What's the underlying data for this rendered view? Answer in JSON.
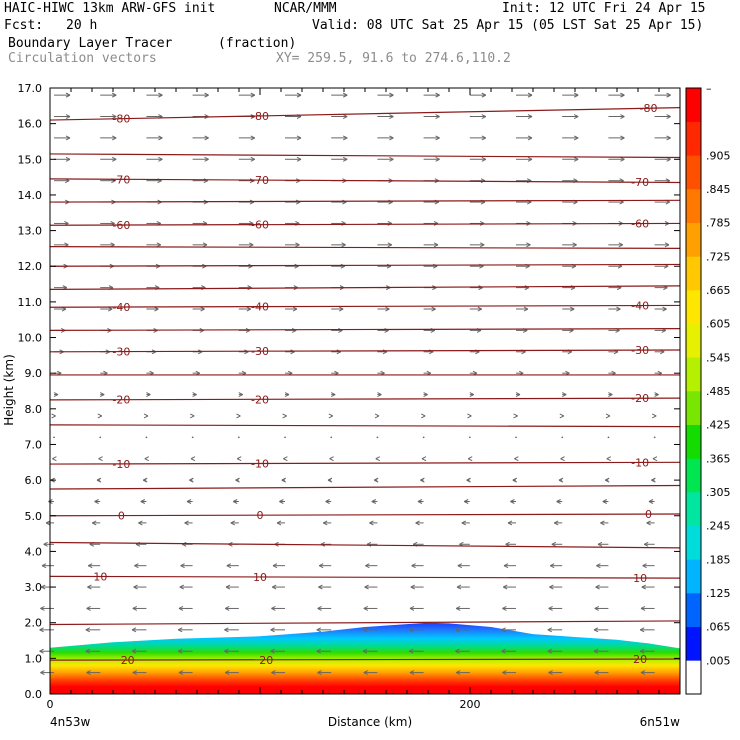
{
  "header": {
    "model": "HAIC-HIWC 13km ARW-GFS init",
    "org": "NCAR/MMM",
    "init": "Init: 12 UTC Fri 24 Apr 15",
    "fcst_label": "Fcst:",
    "fcst_value": "20 h",
    "valid": "Valid: 08 UTC Sat 25 Apr 15 (05 LST Sat 25 Apr 15)",
    "field_name": "Boundary Layer Tracer",
    "field_unit": "(fraction)",
    "vector_name": "Circulation vectors",
    "xy_range": "XY= 259.5, 91.6 to 274.6,110.2"
  },
  "chart_data": {
    "type": "heatmap",
    "title": "Boundary Layer Tracer (fraction)",
    "ylabel": "Height (km)",
    "xlabel": "Distance (km)",
    "xlim": [
      0,
      300
    ],
    "ylim": [
      0,
      17
    ],
    "x_ticks": [
      {
        "value": 0,
        "label": "0"
      },
      {
        "value": 200,
        "label": "200"
      }
    ],
    "x_endpoints": {
      "left": "4n53w",
      "right": "6n51w"
    },
    "y_ticks": [
      {
        "value": 0,
        "label": "0.0"
      },
      {
        "value": 1,
        "label": "1.0"
      },
      {
        "value": 2,
        "label": "2.0"
      },
      {
        "value": 3,
        "label": "3.0"
      },
      {
        "value": 4,
        "label": "4.0"
      },
      {
        "value": 5,
        "label": "5.0"
      },
      {
        "value": 6,
        "label": "6.0"
      },
      {
        "value": 7,
        "label": "7.0"
      },
      {
        "value": 8,
        "label": "8.0"
      },
      {
        "value": 9,
        "label": "9.0"
      },
      {
        "value": 10,
        "label": "10.0"
      },
      {
        "value": 11,
        "label": "11.0"
      },
      {
        "value": 12,
        "label": "12.0"
      },
      {
        "value": 13,
        "label": "13.0"
      },
      {
        "value": 14,
        "label": "14.0"
      },
      {
        "value": 15,
        "label": "15.0"
      },
      {
        "value": 16,
        "label": "16.0"
      },
      {
        "value": 17,
        "label": "17.0"
      }
    ],
    "colorbar": {
      "colors": [
        "#ffffff",
        "#0014ff",
        "#0064ff",
        "#00b4ff",
        "#00dcdc",
        "#00e6a0",
        "#00e650",
        "#14dc00",
        "#78e600",
        "#b4f000",
        "#e6f000",
        "#ffe600",
        "#ffc800",
        "#ffa000",
        "#ff7800",
        "#ff5000",
        "#ff2800",
        "#ff0000"
      ],
      "labels": [
        {
          "value": 0.005,
          "label": ".005"
        },
        {
          "value": 0.065,
          "label": ".065"
        },
        {
          "value": 0.125,
          "label": ".125"
        },
        {
          "value": 0.185,
          "label": ".185"
        },
        {
          "value": 0.245,
          "label": ".245"
        },
        {
          "value": 0.305,
          "label": ".305"
        },
        {
          "value": 0.365,
          "label": ".365"
        },
        {
          "value": 0.425,
          "label": ".425"
        },
        {
          "value": 0.485,
          "label": ".485"
        },
        {
          "value": 0.545,
          "label": ".545"
        },
        {
          "value": 0.605,
          "label": ".605"
        },
        {
          "value": 0.665,
          "label": ".665"
        },
        {
          "value": 0.725,
          "label": ".725"
        },
        {
          "value": 0.785,
          "label": ".785"
        },
        {
          "value": 0.845,
          "label": ".845"
        },
        {
          "value": 0.905,
          "label": ".905"
        }
      ],
      "top_label": "–"
    },
    "tracer_top_km": [
      [
        0,
        1.3
      ],
      [
        30,
        1.45
      ],
      [
        60,
        1.55
      ],
      [
        100,
        1.62
      ],
      [
        130,
        1.75
      ],
      [
        150,
        1.88
      ],
      [
        170,
        1.96
      ],
      [
        180,
        2.0
      ],
      [
        190,
        1.98
      ],
      [
        210,
        1.88
      ],
      [
        230,
        1.68
      ],
      [
        250,
        1.6
      ],
      [
        270,
        1.52
      ],
      [
        285,
        1.42
      ],
      [
        300,
        1.28
      ]
    ],
    "isotherms": [
      {
        "left": 0.95,
        "right": 0.98,
        "label": "20",
        "label_positions": [
          37,
          103,
          281
        ]
      },
      {
        "left": 1.95,
        "right": 2.05
      },
      {
        "left": 3.3,
        "right": 3.25,
        "label": "10",
        "label_positions": [
          24,
          100,
          281
        ]
      },
      {
        "left": 4.25,
        "right": 4.1
      },
      {
        "left": 5.0,
        "right": 5.05,
        "label": "0",
        "label_positions": [
          34,
          100,
          285
        ]
      },
      {
        "left": 5.75,
        "right": 5.85
      },
      {
        "left": 6.45,
        "right": 6.5,
        "label": "-10",
        "label_positions": [
          34,
          100,
          281
        ]
      },
      {
        "left": 7.55,
        "right": 7.5
      },
      {
        "left": 8.25,
        "right": 8.3,
        "label": "-20",
        "label_positions": [
          34,
          100,
          281
        ]
      },
      {
        "left": 8.95,
        "right": 8.95
      },
      {
        "left": 9.6,
        "right": 9.65,
        "label": "-30",
        "label_positions": [
          34,
          100,
          281
        ]
      },
      {
        "left": 10.2,
        "right": 10.25
      },
      {
        "left": 10.85,
        "right": 10.9,
        "label": "-40",
        "label_positions": [
          34,
          100,
          281
        ]
      },
      {
        "left": 11.35,
        "right": 11.45
      },
      {
        "left": 12.0,
        "right": 12.05
      },
      {
        "left": 12.55,
        "right": 12.5
      },
      {
        "left": 13.15,
        "right": 13.2,
        "label": "-60",
        "label_positions": [
          34,
          100,
          281
        ]
      },
      {
        "left": 13.8,
        "right": 13.85
      },
      {
        "left": 14.45,
        "right": 14.35,
        "label": "-70",
        "label_positions": [
          34,
          100,
          281
        ]
      },
      {
        "left": 15.15,
        "right": 15.05
      },
      {
        "left": 16.1,
        "right": 16.45,
        "label": "-80",
        "label_positions": [
          34,
          100,
          285
        ]
      }
    ],
    "isotherm_color": "#8b1a1a",
    "vector_color": "#666666",
    "vectors": {
      "x_columns": [
        0,
        22,
        44,
        66,
        88,
        110,
        132,
        154,
        176,
        198,
        220,
        242,
        264,
        286
      ],
      "levels": [
        {
          "z": 16.8,
          "u": 1.0
        },
        {
          "z": 16.2,
          "u": 1.0
        },
        {
          "z": 15.6,
          "u": 1.0
        },
        {
          "z": 15.0,
          "u": 1.0
        },
        {
          "z": 14.4,
          "u": 0.95
        },
        {
          "z": 13.8,
          "u": 0.95
        },
        {
          "z": 13.2,
          "u": 0.9
        },
        {
          "z": 12.6,
          "u": 0.9
        },
        {
          "z": 12.0,
          "u": 0.85
        },
        {
          "z": 11.4,
          "u": 0.8
        },
        {
          "z": 10.8,
          "u": 0.75
        },
        {
          "z": 10.2,
          "u": 0.7
        },
        {
          "z": 9.6,
          "u": 0.6
        },
        {
          "z": 9.0,
          "u": 0.45
        },
        {
          "z": 8.4,
          "u": 0.25
        },
        {
          "z": 7.8,
          "u": 0.1
        },
        {
          "z": 7.2,
          "u": 0.05
        },
        {
          "z": 6.6,
          "u": -0.1
        },
        {
          "z": 6.0,
          "u": -0.2
        },
        {
          "z": 5.4,
          "u": -0.35
        },
        {
          "z": 4.8,
          "u": -0.5
        },
        {
          "z": 4.2,
          "u": -0.65
        },
        {
          "z": 3.6,
          "u": -0.75
        },
        {
          "z": 3.0,
          "u": -0.8
        },
        {
          "z": 2.4,
          "u": -0.85
        },
        {
          "z": 1.8,
          "u": -0.9
        },
        {
          "z": 1.2,
          "u": -0.9
        },
        {
          "z": 0.6,
          "u": -0.85
        }
      ]
    }
  }
}
